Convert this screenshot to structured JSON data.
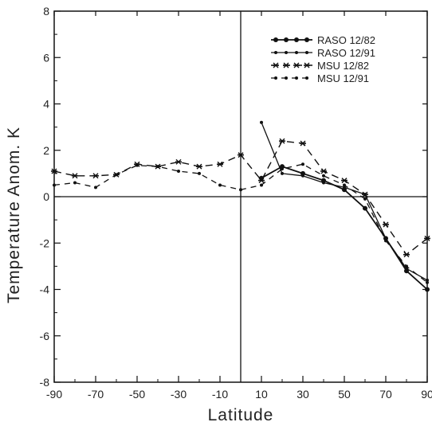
{
  "chart_data": {
    "type": "line",
    "title": "",
    "xlabel": "Latitude",
    "ylabel": "Temperature Anom.  K",
    "xlim": [
      -90,
      90
    ],
    "ylim": [
      -8,
      8
    ],
    "xticks": [
      -90,
      -70,
      -50,
      -30,
      -10,
      10,
      30,
      50,
      70,
      90
    ],
    "yticks": [
      -8,
      -6,
      -4,
      -2,
      0,
      2,
      4,
      6,
      8
    ],
    "grid": false,
    "reference_lines": {
      "x": 0,
      "y": 0
    },
    "legend_position": "top-right",
    "series": [
      {
        "name": "RASO  12/82",
        "style": "solid-dots",
        "x": [
          10,
          20,
          30,
          40,
          50,
          60,
          70,
          80,
          90
        ],
        "y": [
          0.8,
          1.3,
          1.0,
          0.7,
          0.3,
          -0.5,
          -1.8,
          -3.2,
          -4.0
        ]
      },
      {
        "name": "RASO  12/91",
        "style": "solid",
        "x": [
          10,
          20,
          30,
          40,
          50,
          60,
          70,
          80,
          90
        ],
        "y": [
          3.2,
          1.0,
          0.9,
          0.6,
          0.4,
          0.1,
          -1.8,
          -3.1,
          -3.6
        ]
      },
      {
        "name": "MSU  12/82",
        "style": "dashed-stars",
        "x": [
          -90,
          -80,
          -70,
          -60,
          -50,
          -40,
          -30,
          -20,
          -10,
          0,
          10,
          20,
          30,
          40,
          50,
          60,
          70,
          80,
          90
        ],
        "y": [
          1.1,
          0.9,
          0.9,
          0.95,
          1.4,
          1.3,
          1.5,
          1.3,
          1.4,
          1.8,
          0.7,
          2.4,
          2.3,
          1.1,
          0.7,
          0.1,
          -1.2,
          -2.5,
          -1.8
        ]
      },
      {
        "name": "MSU  12/91",
        "style": "dashed",
        "x": [
          -90,
          -80,
          -70,
          -60,
          -50,
          -40,
          -30,
          -20,
          -10,
          0,
          10,
          20,
          30,
          40,
          50,
          60,
          70,
          80,
          90
        ],
        "y": [
          0.5,
          0.6,
          0.4,
          0.95,
          1.35,
          1.3,
          1.1,
          1.0,
          0.5,
          0.3,
          0.5,
          1.2,
          1.4,
          0.9,
          0.5,
          -0.1,
          -1.9,
          -3.0,
          -3.7
        ]
      }
    ],
    "annotations": []
  }
}
